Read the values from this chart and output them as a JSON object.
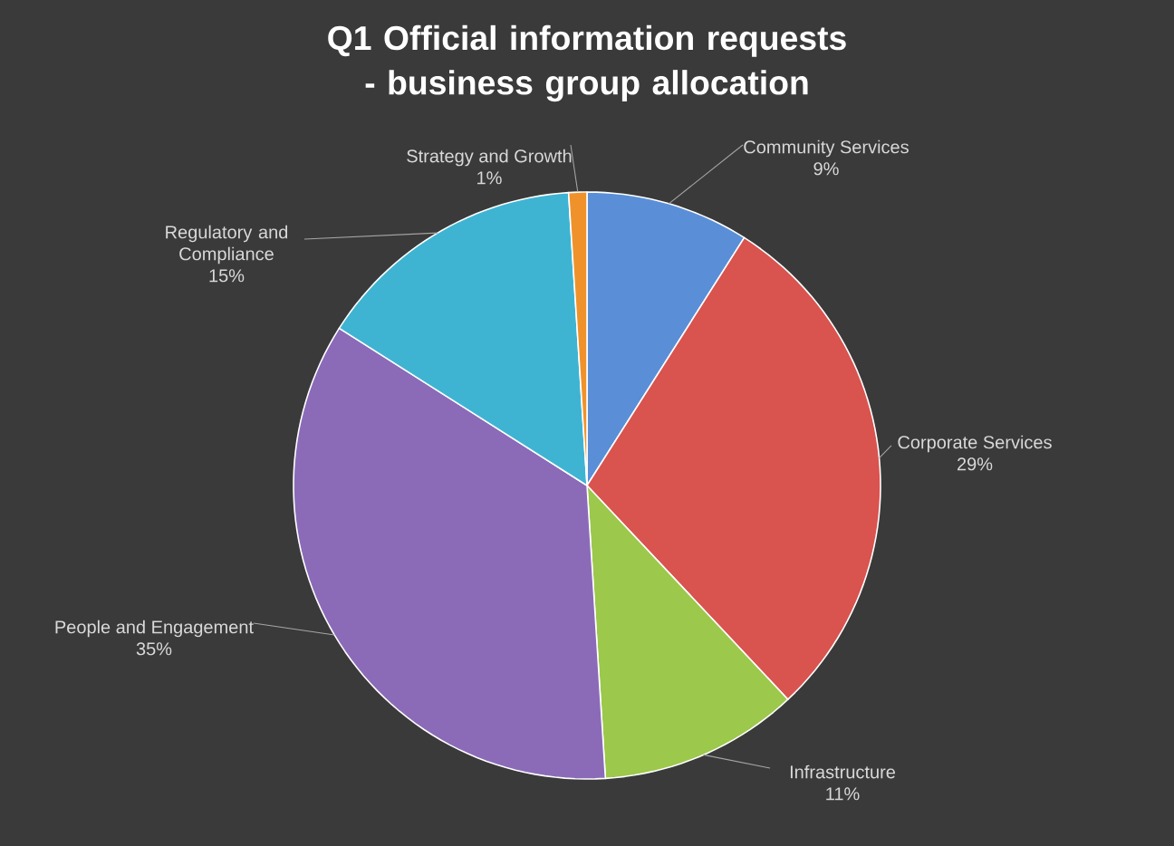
{
  "chart_data": {
    "type": "pie",
    "title": "Q1 Official information requests - business group allocation",
    "categories": [
      "Community Services",
      "Corporate Services",
      "Infrastructure",
      "People and Engagement",
      "Regulatory and Compliance",
      "Strategy and Growth"
    ],
    "values": [
      9,
      29,
      11,
      35,
      15,
      1
    ],
    "value_labels": [
      "9%",
      "29%",
      "11%",
      "35%",
      "15%",
      "1%"
    ],
    "colors": [
      "#5a8fd8",
      "#d9534f",
      "#9cc84b",
      "#8b6bb8",
      "#3fb4d2",
      "#f0922b"
    ]
  }
}
